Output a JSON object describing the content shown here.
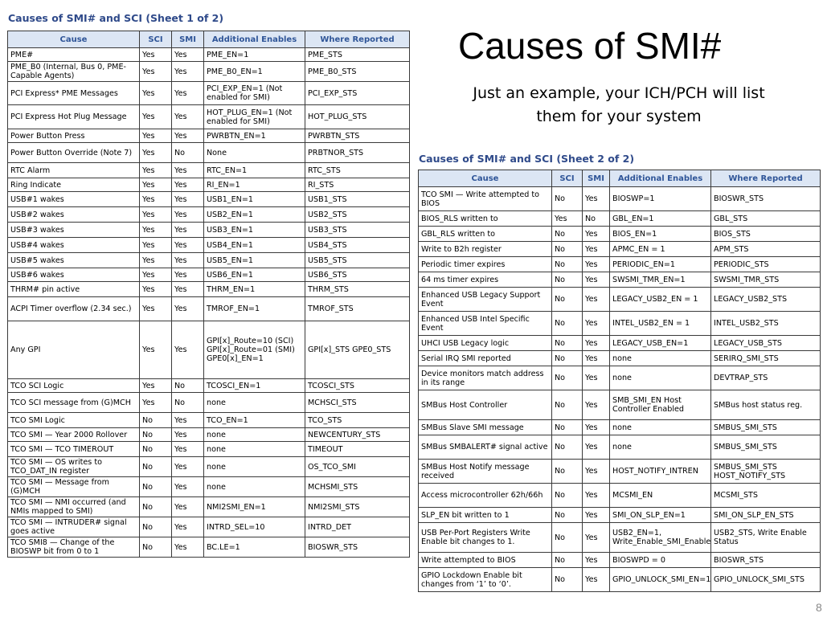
{
  "slide": {
    "title": "Causes of SMI#",
    "subtitle_line1": "Just an example, your ICH/PCH will list",
    "subtitle_line2": "them for your system",
    "page_number": "8"
  },
  "columns": [
    "Cause",
    "SCI",
    "SMI",
    "Additional Enables",
    "Where Reported"
  ],
  "sheet1": {
    "title": "Causes of SMI# and SCI  (Sheet 1 of 2)",
    "rows": [
      [
        "PME#",
        "Yes",
        "Yes",
        "PME_EN=1",
        "PME_STS"
      ],
      [
        "PME_B0 (Internal, Bus 0, PME-Capable Agents)",
        "Yes",
        "Yes",
        "PME_B0_EN=1",
        "PME_B0_STS"
      ],
      [
        "PCI Express* PME Messages",
        "Yes",
        "Yes",
        "PCI_EXP_EN=1 (Not enabled for SMI)",
        "PCI_EXP_STS"
      ],
      [
        "PCI Express Hot Plug Message",
        "Yes",
        "Yes",
        "HOT_PLUG_EN=1 (Not enabled for SMI)",
        "HOT_PLUG_STS"
      ],
      [
        "Power Button Press",
        "Yes",
        "Yes",
        "PWRBTN_EN=1",
        "PWRBTN_STS"
      ],
      [
        "Power Button Override (Note 7)",
        "Yes",
        "No",
        "None",
        "PRBTNOR_STS"
      ],
      [
        "RTC Alarm",
        "Yes",
        "Yes",
        "RTC_EN=1",
        "RTC_STS"
      ],
      [
        "Ring Indicate",
        "Yes",
        "Yes",
        "RI_EN=1",
        "RI_STS"
      ],
      [
        "USB#1 wakes",
        "Yes",
        "Yes",
        "USB1_EN=1",
        "USB1_STS"
      ],
      [
        "USB#2 wakes",
        "Yes",
        "Yes",
        "USB2_EN=1",
        "USB2_STS"
      ],
      [
        "USB#3 wakes",
        "Yes",
        "Yes",
        "USB3_EN=1",
        "USB3_STS"
      ],
      [
        "USB#4 wakes",
        "Yes",
        "Yes",
        "USB4_EN=1",
        "USB4_STS"
      ],
      [
        "USB#5 wakes",
        "Yes",
        "Yes",
        "USB5_EN=1",
        "USB5_STS"
      ],
      [
        "USB#6 wakes",
        "Yes",
        "Yes",
        "USB6_EN=1",
        "USB6_STS"
      ],
      [
        "THRM# pin active",
        "Yes",
        "Yes",
        "THRM_EN=1",
        "THRM_STS"
      ],
      [
        "ACPI Timer overflow (2.34 sec.)",
        "Yes",
        "Yes",
        "TMROF_EN=1",
        "TMROF_STS"
      ],
      [
        "Any GPI",
        "Yes",
        "Yes",
        "GPI[x]_Route=10 (SCI) GPI[x]_Route=01 (SMI) GPE0[x]_EN=1",
        "GPI[x]_STS GPE0_STS"
      ],
      [
        "TCO SCI Logic",
        "Yes",
        "No",
        "TCOSCI_EN=1",
        "TCOSCI_STS"
      ],
      [
        "TCO SCI message from (G)MCH",
        "Yes",
        "No",
        "none",
        "MCHSCI_STS"
      ],
      [
        "TCO SMI Logic",
        "No",
        "Yes",
        "TCO_EN=1",
        "TCO_STS"
      ],
      [
        "TCO SMI — Year 2000 Rollover",
        "No",
        "Yes",
        "none",
        "NEWCENTURY_STS"
      ],
      [
        "TCO SMI — TCO TIMEROUT",
        "No",
        "Yes",
        "none",
        "TIMEOUT"
      ],
      [
        "TCO SMI — OS writes to TCO_DAT_IN register",
        "No",
        "Yes",
        "none",
        "OS_TCO_SMI"
      ],
      [
        "TCO SMI — Message from (G)MCH",
        "No",
        "Yes",
        "none",
        "MCHSMI_STS"
      ],
      [
        "TCO SMI — NMI occurred (and NMIs mapped to SMI)",
        "No",
        "Yes",
        "NMI2SMI_EN=1",
        "NMI2SMI_STS"
      ],
      [
        "TCO SMI — INTRUDER# signal goes active",
        "No",
        "Yes",
        "INTRD_SEL=10",
        "INTRD_DET"
      ],
      [
        "TCO SMI8 — Change of the BIOSWP bit from 0 to 1",
        "No",
        "Yes",
        "BC.LE=1",
        "BIOSWR_STS"
      ]
    ]
  },
  "sheet2": {
    "title": "Causes of SMI# and SCI  (Sheet 2 of 2)",
    "rows": [
      [
        "TCO SMI — Write attempted to BIOS",
        "No",
        "Yes",
        "BIOSWP=1",
        "BIOSWR_STS"
      ],
      [
        "BIOS_RLS written to",
        "Yes",
        "No",
        "GBL_EN=1",
        "GBL_STS"
      ],
      [
        "GBL_RLS written to",
        "No",
        "Yes",
        "BIOS_EN=1",
        "BIOS_STS"
      ],
      [
        "Write to B2h register",
        "No",
        "Yes",
        "APMC_EN = 1",
        "APM_STS"
      ],
      [
        "Periodic timer expires",
        "No",
        "Yes",
        "PERIODIC_EN=1",
        "PERIODIC_STS"
      ],
      [
        "64 ms timer expires",
        "No",
        "Yes",
        "SWSMI_TMR_EN=1",
        "SWSMI_TMR_STS"
      ],
      [
        "Enhanced USB Legacy Support Event",
        "No",
        "Yes",
        "LEGACY_USB2_EN = 1",
        "LEGACY_USB2_STS"
      ],
      [
        "Enhanced USB Intel Specific Event",
        "No",
        "Yes",
        "INTEL_USB2_EN = 1",
        "INTEL_USB2_STS"
      ],
      [
        "UHCI USB Legacy logic",
        "No",
        "Yes",
        "LEGACY_USB_EN=1",
        "LEGACY_USB_STS"
      ],
      [
        "Serial IRQ SMI reported",
        "No",
        "Yes",
        "none",
        "SERIRQ_SMI_STS"
      ],
      [
        "Device monitors match address in its range",
        "No",
        "Yes",
        "none",
        "DEVTRAP_STS"
      ],
      [
        "SMBus Host Controller",
        "No",
        "Yes",
        "SMB_SMI_EN Host Controller Enabled",
        "SMBus host status reg."
      ],
      [
        "SMBus Slave SMI message",
        "No",
        "Yes",
        "none",
        "SMBUS_SMI_STS"
      ],
      [
        "SMBus SMBALERT# signal active",
        "No",
        "Yes",
        "none",
        "SMBUS_SMI_STS"
      ],
      [
        "SMBus Host Notify message received",
        "No",
        "Yes",
        "HOST_NOTIFY_INTREN",
        "SMBUS_SMI_STS HOST_NOTIFY_STS"
      ],
      [
        "Access microcontroller 62h/66h",
        "No",
        "Yes",
        "MCSMI_EN",
        "MCSMI_STS"
      ],
      [
        "SLP_EN bit written to 1",
        "No",
        "Yes",
        "SMI_ON_SLP_EN=1",
        "SMI_ON_SLP_EN_STS"
      ],
      [
        "USB Per-Port Registers Write Enable bit changes to 1.",
        "No",
        "Yes",
        "USB2_EN=1, Write_Enable_SMI_Enable=1",
        "USB2_STS, Write Enable Status"
      ],
      [
        "Write attempted to BIOS",
        "No",
        "Yes",
        "BIOSWPD = 0",
        "BIOSWR_STS"
      ],
      [
        "GPIO Lockdown Enable bit changes from ‘1’ to ‘0’.",
        "No",
        "Yes",
        "GPIO_UNLOCK_SMI_EN=1",
        "GPIO_UNLOCK_SMI_STS"
      ]
    ]
  }
}
